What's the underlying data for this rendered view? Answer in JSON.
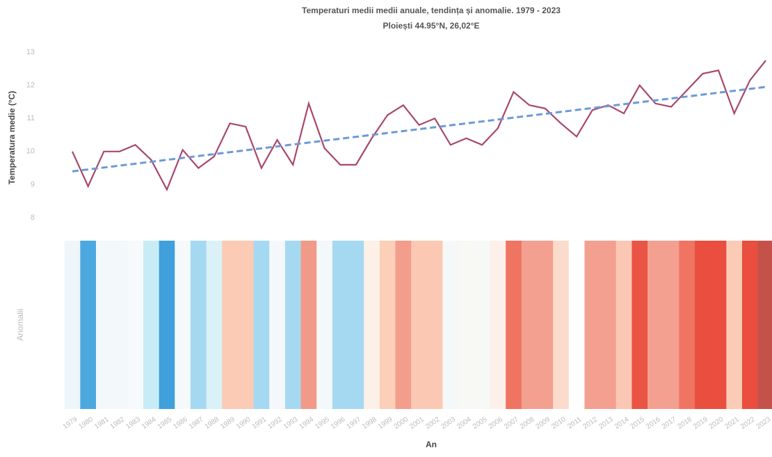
{
  "chart_data": {
    "type": "line",
    "title": "Temperaturi medii medii anuale, tendința și anomalie. 1979 - 2023",
    "subtitle": "Ploiești 44.95°N, 26,02°E",
    "y_label": "Temperatura medie (°C)",
    "anomaly_label": "Anomalii",
    "x_label": "An",
    "x": [
      1979,
      1980,
      1981,
      1982,
      1983,
      1984,
      1985,
      1986,
      1987,
      1988,
      1989,
      1990,
      1991,
      1992,
      1993,
      1994,
      1995,
      1996,
      1997,
      1998,
      1999,
      2000,
      2001,
      2002,
      2003,
      2004,
      2005,
      2006,
      2007,
      2008,
      2009,
      2010,
      2011,
      2012,
      2013,
      2014,
      2015,
      2016,
      2017,
      2018,
      2019,
      2020,
      2021,
      2022,
      2023
    ],
    "xlim": [
      1979,
      2023
    ],
    "ylim": [
      8,
      13
    ],
    "yticks": [
      8,
      9,
      10,
      11,
      12,
      13
    ],
    "series": [
      {
        "color": "#a8466b",
        "values": [
          10.0,
          8.95,
          10.0,
          10.0,
          10.2,
          9.75,
          8.85,
          10.05,
          9.5,
          9.85,
          10.85,
          10.75,
          9.5,
          10.35,
          9.6,
          11.45,
          10.1,
          9.6,
          9.6,
          10.4,
          11.1,
          11.4,
          10.8,
          11.0,
          10.2,
          10.4,
          10.2,
          10.7,
          11.8,
          11.4,
          11.3,
          10.85,
          10.45,
          11.25,
          11.4,
          11.15,
          12.0,
          11.45,
          11.35,
          11.85,
          12.35,
          12.45,
          11.15,
          12.15,
          12.75
        ]
      }
    ],
    "trend": {
      "color": "#6a9ad8",
      "x": [
        1979,
        2023
      ],
      "values": [
        9.4,
        11.95
      ]
    },
    "anomaly_colors": [
      "#eef6fa",
      "#4ba9e0",
      "#f3f8fa",
      "#f3f8fa",
      "#f7fafa",
      "#c8ecf6",
      "#3fa0dc",
      "#f5f9fa",
      "#a5d9f2",
      "#daf1f8",
      "#fbcbb5",
      "#fbcbb5",
      "#a5d9f2",
      "#f5f8fa",
      "#a5d9f2",
      "#f29a88",
      "#f3f8fa",
      "#a5d9f2",
      "#a5d9f2",
      "#fdf0e8",
      "#fbcfb8",
      "#f39d8d",
      "#fbc9b3",
      "#fbc9b3",
      "#f5f8f9",
      "#f8f8f4",
      "#f7f9f7",
      "#fdf0ea",
      "#ef7462",
      "#f4a090",
      "#f4a090",
      "#fbdccc",
      "#ffffff",
      "#f4a090",
      "#f4a090",
      "#fbc7b5",
      "#ea5444",
      "#f4a090",
      "#f4a090",
      "#ef7462",
      "#e94e3f",
      "#e94e3f",
      "#fbcbb5",
      "#e94e3f",
      "#c5524a"
    ]
  }
}
